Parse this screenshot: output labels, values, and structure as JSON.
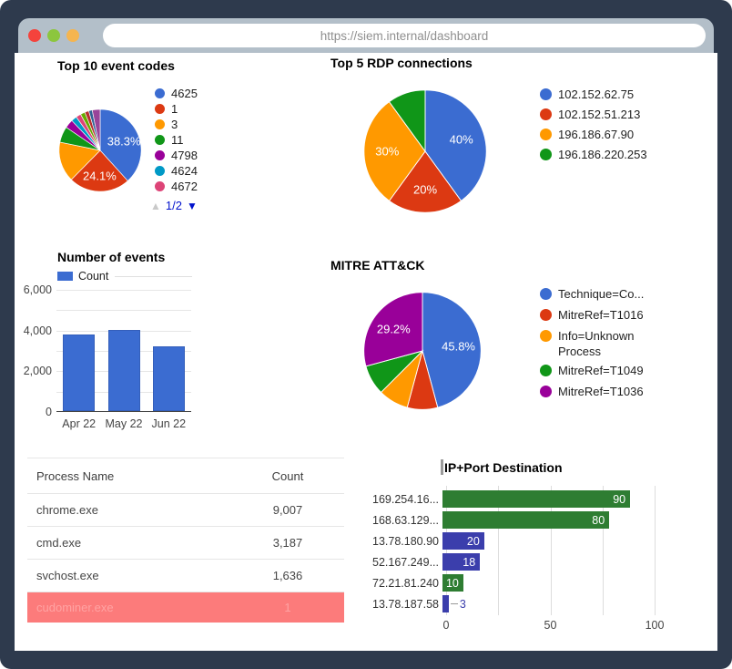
{
  "browser": {
    "url": "https://siem.internal/dashboard",
    "traffic_lights": [
      {
        "name": "close",
        "color": "#f4433c"
      },
      {
        "name": "minimize",
        "color": "#8cc63e"
      },
      {
        "name": "zoom",
        "color": "#f5b54f"
      }
    ]
  },
  "chart_data": [
    {
      "id": "event_codes",
      "type": "pie",
      "title": "Top 10 event codes",
      "legend_position": "right",
      "legend_visible_count": 7,
      "legend_pagination": {
        "current": "1/2",
        "up_enabled": false,
        "down_enabled": true
      },
      "slices": [
        {
          "name": "4625",
          "value": 38.3,
          "color": "#3b6cd1",
          "label": "38.3%"
        },
        {
          "name": "1",
          "value": 24.1,
          "color": "#dc3912",
          "label": "24.1%"
        },
        {
          "name": "3",
          "value": 15.8,
          "color": "#ff9900"
        },
        {
          "name": "11",
          "value": 6.3,
          "color": "#109618"
        },
        {
          "name": "4798",
          "value": 3.4,
          "color": "#990099"
        },
        {
          "name": "4624",
          "value": 2.2,
          "color": "#0099c6"
        },
        {
          "name": "4672",
          "value": 2.0,
          "color": "#dd4477"
        },
        {
          "name": "",
          "value": 1.8,
          "color": "#66aa00"
        },
        {
          "name": "",
          "value": 1.6,
          "color": "#b82e2e"
        },
        {
          "name": "",
          "value": 1.4,
          "color": "#316395"
        },
        {
          "name": "",
          "value": 3.1,
          "color": "#994499"
        }
      ]
    },
    {
      "id": "rdp",
      "type": "pie",
      "title": "Top 5 RDP connections",
      "legend_position": "right",
      "slices": [
        {
          "name": "102.152.62.75",
          "value": 40,
          "color": "#3b6cd1",
          "label": "40%"
        },
        {
          "name": "102.152.51.213",
          "value": 20,
          "color": "#dc3912",
          "label": "20%"
        },
        {
          "name": "196.186.67.90",
          "value": 30,
          "color": "#ff9900",
          "label": "30%"
        },
        {
          "name": "196.186.220.253",
          "value": 10,
          "color": "#109618"
        }
      ]
    },
    {
      "id": "events",
      "type": "bar",
      "title": "Number of events",
      "legend": [
        {
          "name": "Count",
          "color": "#3b6cd1"
        }
      ],
      "categories": [
        "Apr 22",
        "May 22",
        "Jun 22"
      ],
      "values": [
        3760,
        3990,
        3180
      ],
      "ylim": [
        0,
        6000
      ],
      "grid_step": 1000,
      "yticks": [
        [
          0,
          "0"
        ],
        [
          2000,
          "2,000"
        ],
        [
          4000,
          "4,000"
        ],
        [
          6000,
          "6,000"
        ]
      ]
    },
    {
      "id": "mitre",
      "type": "pie",
      "title": "MITRE ATT&CK",
      "legend_position": "right",
      "slices": [
        {
          "name": "Technique=Co...",
          "value": 45.8,
          "color": "#3b6cd1",
          "label": "45.8%"
        },
        {
          "name": "MitreRef=T1016",
          "value": 8.4,
          "color": "#dc3912"
        },
        {
          "name": "Info=Unknown Process",
          "value": 8.3,
          "color": "#ff9900"
        },
        {
          "name": "MitreRef=T1049",
          "value": 8.3,
          "color": "#109618"
        },
        {
          "name": "MitreRef=T1036",
          "value": 29.2,
          "color": "#990099",
          "label": "29.2%"
        }
      ]
    },
    {
      "id": "ip_port",
      "type": "horizontal_bar",
      "title": "IP+Port Destination",
      "categories": [
        "169.254.16...",
        "168.63.129...",
        "13.78.180.90",
        "52.167.249...",
        "72.21.81.240",
        "13.78.187.58"
      ],
      "values": [
        90,
        80,
        20,
        18,
        10,
        3
      ],
      "bar_colors": [
        "#2e7d32",
        "#2e7d32",
        "#3b3eac",
        "#3b3eac",
        "#2e7d32",
        "#3b3eac"
      ],
      "xlim": [
        0,
        100
      ],
      "xticks": [
        0,
        50,
        100
      ],
      "grid_ticks": [
        0,
        25,
        50,
        75,
        100
      ]
    }
  ],
  "table": {
    "columns": [
      "Process Name",
      "Count"
    ],
    "rows": [
      {
        "process": "chrome.exe",
        "count": "9,007",
        "highlight": false
      },
      {
        "process": "cmd.exe",
        "count": "3,187",
        "highlight": false
      },
      {
        "process": "svchost.exe",
        "count": "1,636",
        "highlight": false
      },
      {
        "process": "cudominer.exe",
        "count": "1",
        "highlight": true
      }
    ],
    "highlight_bg": "#fc7b7b",
    "highlight_text": "#ffa3a3"
  }
}
